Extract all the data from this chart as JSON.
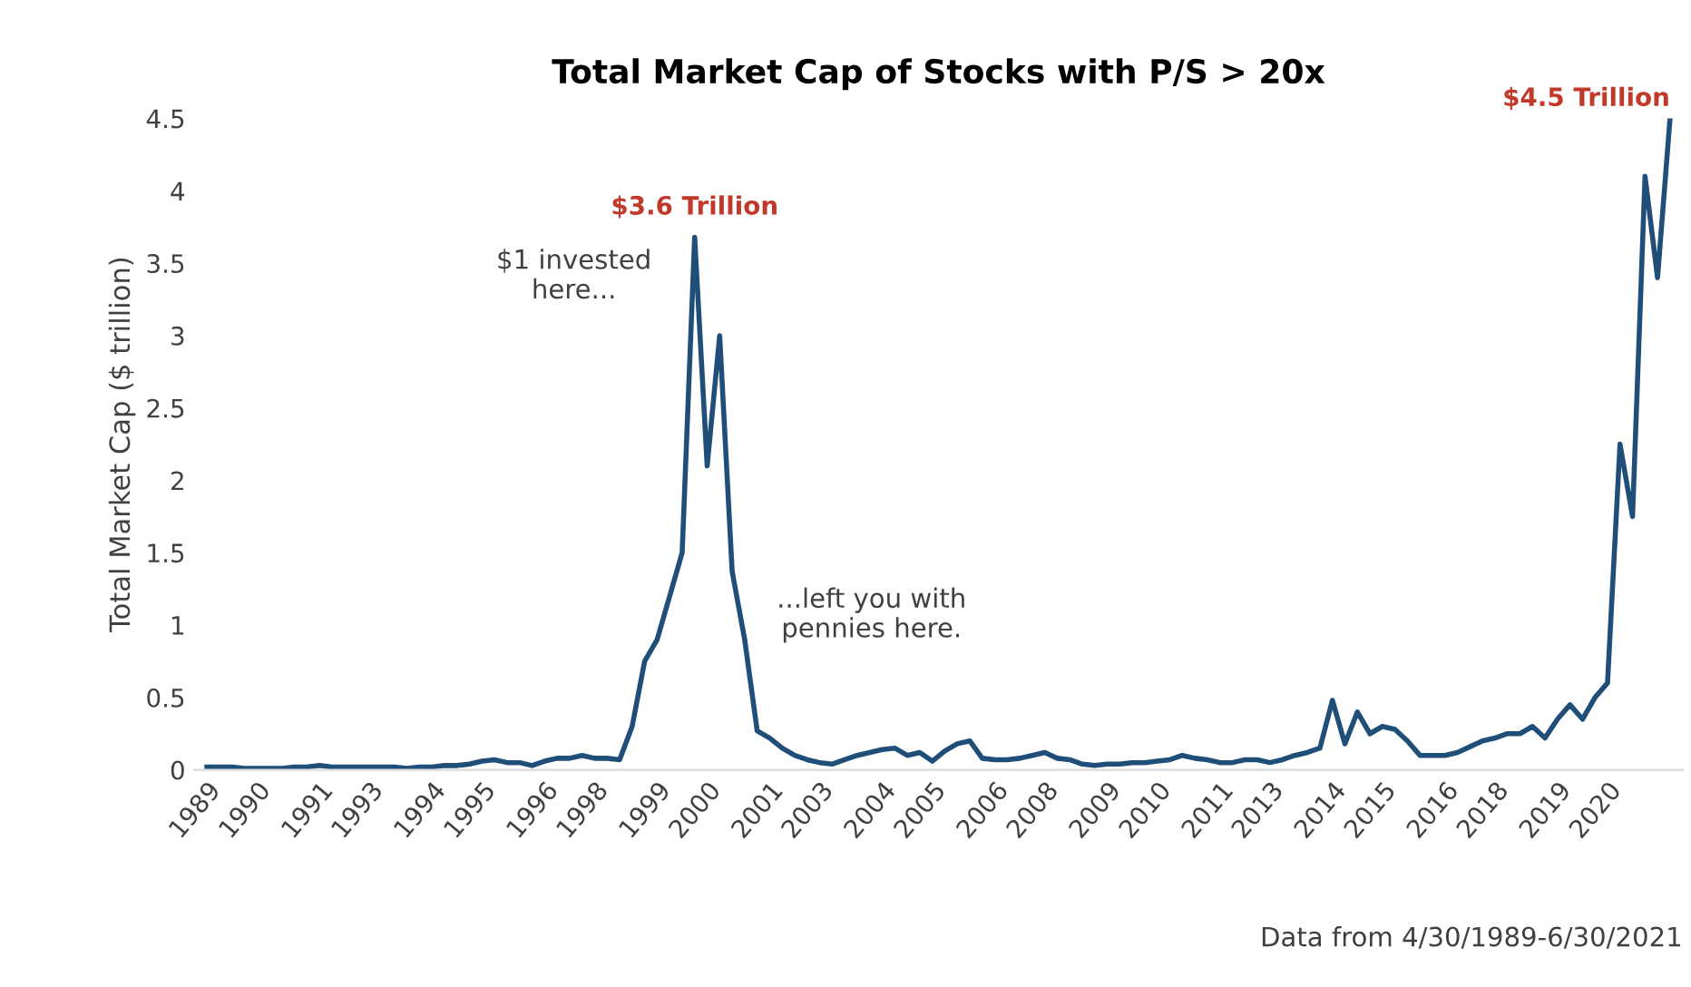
{
  "chart_data": {
    "type": "line",
    "title": "Total Market Cap of Stocks with P/S > 20x",
    "ylabel": "Total Market Cap ($ trillion)",
    "categories": [
      "1989",
      null,
      null,
      null,
      "1990",
      null,
      null,
      null,
      null,
      "1991",
      null,
      null,
      null,
      "1993",
      null,
      null,
      null,
      null,
      "1994",
      null,
      null,
      null,
      "1995",
      null,
      null,
      null,
      null,
      "1996",
      null,
      null,
      null,
      "1998",
      null,
      null,
      null,
      null,
      "1999",
      null,
      null,
      null,
      "2000",
      null,
      null,
      null,
      null,
      "2001",
      null,
      null,
      null,
      "2003",
      null,
      null,
      null,
      null,
      "2004",
      null,
      null,
      null,
      "2005",
      null,
      null,
      null,
      null,
      "2006",
      null,
      null,
      null,
      "2008",
      null,
      null,
      null,
      null,
      "2009",
      null,
      null,
      null,
      "2010",
      null,
      null,
      null,
      null,
      "2011",
      null,
      null,
      null,
      "2013",
      null,
      null,
      null,
      null,
      "2014",
      null,
      null,
      null,
      "2015",
      null,
      null,
      null,
      null,
      "2016",
      null,
      null,
      null,
      "2018",
      null,
      null,
      null,
      null,
      "2019",
      null,
      null,
      null,
      "2020",
      null,
      null,
      null,
      null,
      null
    ],
    "series": [
      {
        "color": "#1f4e79",
        "values": [
          0.02,
          0.02,
          0.02,
          0.01,
          0.01,
          0.01,
          0.01,
          0.02,
          0.02,
          0.03,
          0.02,
          0.02,
          0.02,
          0.02,
          0.02,
          0.02,
          0.01,
          0.02,
          0.02,
          0.03,
          0.03,
          0.04,
          0.06,
          0.07,
          0.05,
          0.05,
          0.03,
          0.06,
          0.08,
          0.08,
          0.1,
          0.08,
          0.08,
          0.07,
          0.3,
          0.75,
          0.9,
          1.2,
          1.5,
          3.68,
          2.1,
          3.0,
          1.37,
          0.9,
          0.27,
          0.22,
          0.15,
          0.1,
          0.07,
          0.05,
          0.04,
          0.07,
          0.1,
          0.12,
          0.14,
          0.15,
          0.1,
          0.12,
          0.06,
          0.13,
          0.18,
          0.2,
          0.08,
          0.07,
          0.07,
          0.08,
          0.1,
          0.12,
          0.08,
          0.07,
          0.04,
          0.03,
          0.04,
          0.04,
          0.05,
          0.05,
          0.06,
          0.07,
          0.1,
          0.08,
          0.07,
          0.05,
          0.05,
          0.07,
          0.07,
          0.05,
          0.07,
          0.1,
          0.12,
          0.15,
          0.48,
          0.18,
          0.4,
          0.25,
          0.3,
          0.28,
          0.2,
          0.1,
          0.1,
          0.1,
          0.12,
          0.16,
          0.2,
          0.22,
          0.25,
          0.25,
          0.3,
          0.22,
          0.35,
          0.45,
          0.35,
          0.5,
          0.6,
          2.25,
          1.75,
          4.1,
          3.4,
          4.5
        ]
      }
    ],
    "ylim": [
      0,
      4.5
    ],
    "yticks": [
      0,
      0.5,
      1,
      1.5,
      2,
      2.5,
      3,
      3.5,
      4,
      4.5
    ],
    "grid": false,
    "marker": "none",
    "line_style": "solid",
    "annotations": [
      "$3.6 Trillion",
      "$4.5 Trillion",
      "$1 invested\nhere...",
      "...left you with\npennies here.",
      "Data from 4/30/1989-6/30/2021"
    ]
  }
}
